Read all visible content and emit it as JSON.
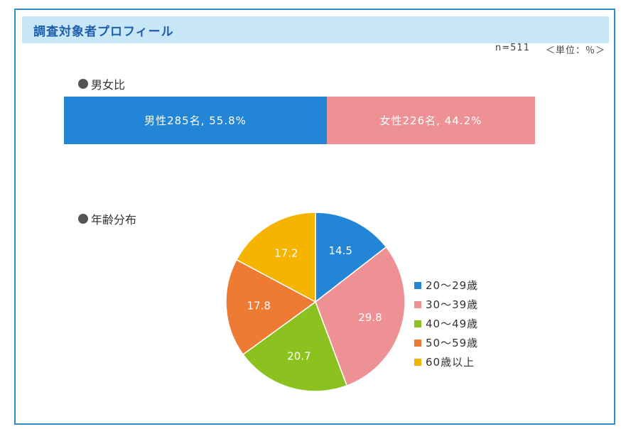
{
  "header": {
    "title": "調査対象者プロフィール"
  },
  "meta": {
    "n_label": "n=511",
    "unit_label": "＜単位：％＞"
  },
  "chart_data": [
    {
      "type": "bar",
      "title": "男女比",
      "stacked": true,
      "orientation": "horizontal",
      "segments": [
        {
          "label": "男性285名, 55.8%",
          "value": 55.8,
          "count": 285,
          "color": "#2385d6"
        },
        {
          "label": "女性226名, 44.2%",
          "value": 44.2,
          "count": 226,
          "color": "#ee9194"
        }
      ]
    },
    {
      "type": "pie",
      "title": "年齢分布",
      "legend_position": "right",
      "slices": [
        {
          "name": "20～29歳",
          "value": 14.5,
          "label": "14.5",
          "color": "#2385d6"
        },
        {
          "name": "30～39歳",
          "value": 29.8,
          "label": "29.8",
          "color": "#ee9194"
        },
        {
          "name": "40～49歳",
          "value": 20.7,
          "label": "20.7",
          "color": "#8cc21f"
        },
        {
          "name": "50～59歳",
          "value": 17.8,
          "label": "17.8",
          "color": "#ee7b33"
        },
        {
          "name": "60歳以上",
          "value": 17.2,
          "label": "17.2",
          "color": "#f5b400"
        }
      ]
    }
  ]
}
